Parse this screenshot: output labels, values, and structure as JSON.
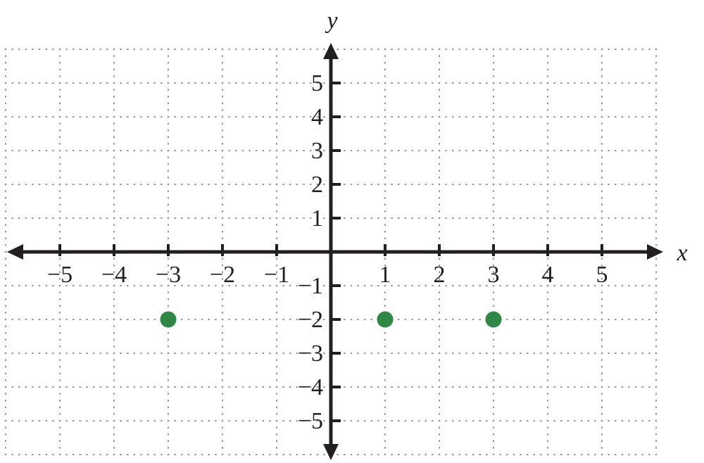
{
  "chart_data": {
    "type": "scatter",
    "title": "",
    "xlabel": "x",
    "ylabel": "y",
    "points": [
      {
        "x": -3,
        "y": -2
      },
      {
        "x": 1,
        "y": -2
      },
      {
        "x": 3,
        "y": -2
      }
    ],
    "x_ticks": [
      {
        "value": -5,
        "label": "−5"
      },
      {
        "value": -4,
        "label": "−4"
      },
      {
        "value": -3,
        "label": "−3"
      },
      {
        "value": -2,
        "label": "−2"
      },
      {
        "value": -1,
        "label": "−1"
      },
      {
        "value": 1,
        "label": "1"
      },
      {
        "value": 2,
        "label": "2"
      },
      {
        "value": 3,
        "label": "3"
      },
      {
        "value": 4,
        "label": "4"
      },
      {
        "value": 5,
        "label": "5"
      }
    ],
    "y_ticks": [
      {
        "value": -5,
        "label": "−5"
      },
      {
        "value": -4,
        "label": "−4"
      },
      {
        "value": -3,
        "label": "−3"
      },
      {
        "value": -2,
        "label": "−2"
      },
      {
        "value": -1,
        "label": "−1"
      },
      {
        "value": 1,
        "label": "1"
      },
      {
        "value": 2,
        "label": "2"
      },
      {
        "value": 3,
        "label": "3"
      },
      {
        "value": 4,
        "label": "4"
      },
      {
        "value": 5,
        "label": "5"
      }
    ],
    "xlim": [
      -6,
      6
    ],
    "ylim": [
      -6,
      6
    ],
    "grid": "dotted",
    "legend": "none",
    "colors": {
      "point": "#2e8745",
      "axis": "#231f20",
      "tick_label": "#231f20",
      "grid": "#969696",
      "background": "#ffffff"
    }
  }
}
